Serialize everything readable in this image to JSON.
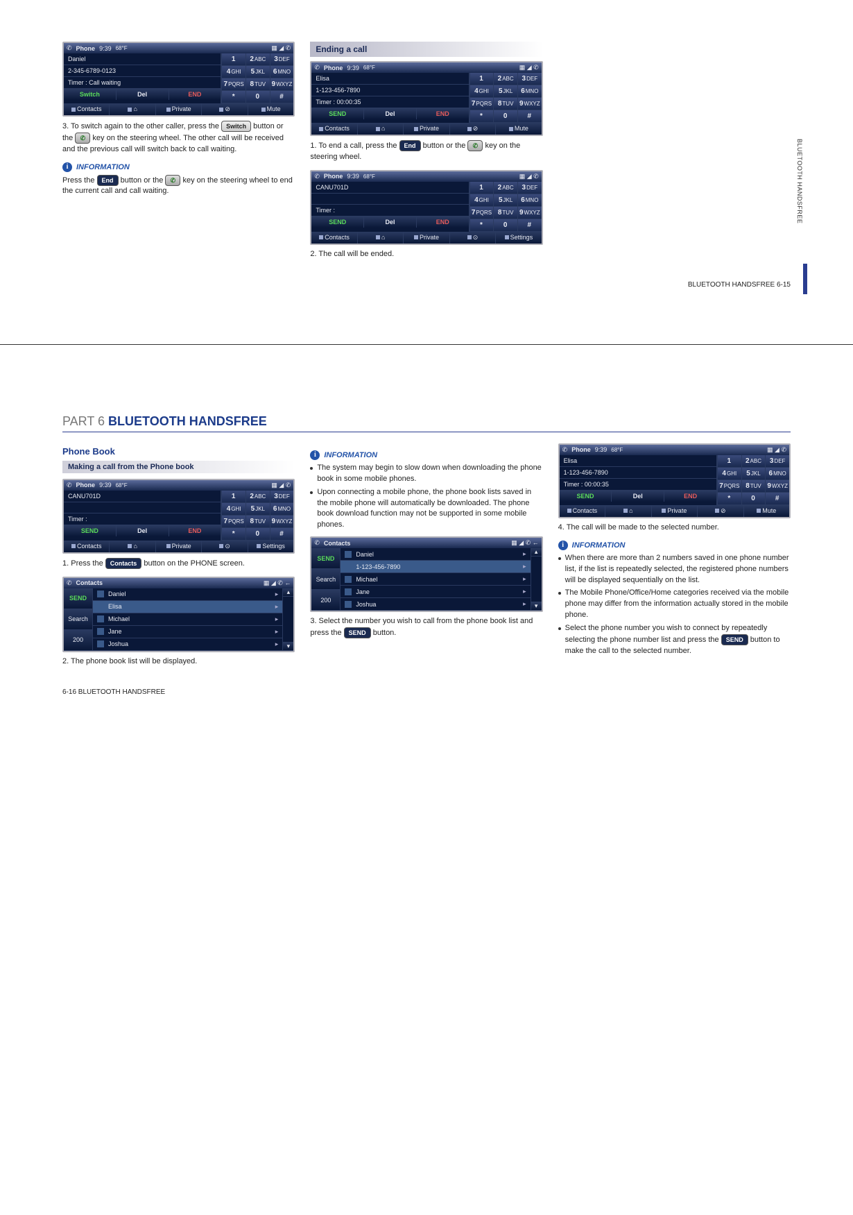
{
  "keypad": [
    {
      "n": "1",
      "t": ""
    },
    {
      "n": "2",
      "t": "ABC"
    },
    {
      "n": "3",
      "t": "DEF"
    },
    {
      "n": "4",
      "t": "GHI"
    },
    {
      "n": "5",
      "t": "JKL"
    },
    {
      "n": "6",
      "t": "MNO"
    },
    {
      "n": "7",
      "t": "PQRS"
    },
    {
      "n": "8",
      "t": "TUV"
    },
    {
      "n": "9",
      "t": "WXYZ"
    },
    {
      "n": "*",
      "t": ""
    },
    {
      "n": "0",
      "t": ""
    },
    {
      "n": "#",
      "t": ""
    }
  ],
  "header": {
    "title": "Phone",
    "time": "9:39",
    "temp": "68°F",
    "icons": "▦ ◢ ✆"
  },
  "page1": {
    "screen1": {
      "rows": [
        "Daniel",
        "2-345-6789-0123",
        "Timer : Call waiting"
      ],
      "btns": [
        {
          "t": "Switch",
          "c": "btn-green"
        },
        {
          "t": "Del",
          "c": ""
        },
        {
          "t": "END",
          "c": "btn-red"
        }
      ],
      "footer": [
        "Contacts",
        "⌂",
        "Private",
        "⊘",
        "Mute"
      ]
    },
    "step3": "3. To switch again to the other caller, press the ",
    "step3b": " button or the ",
    "step3c": " key on the steering wheel. The other call will be received and the previous call will switch back to call waiting.",
    "pill_switch": "Switch",
    "info_heading": "INFORMATION",
    "info1a": "Press the ",
    "info1b": " button or the ",
    "info1c": " key on the steering wheel to end the current call and call waiting.",
    "pill_end": "End",
    "ending_heading": "Ending a call",
    "screen2": {
      "rows": [
        "Elisa",
        "1-123-456-7890",
        "Timer : 00:00:35"
      ],
      "btns": [
        {
          "t": "SEND",
          "c": "btn-green"
        },
        {
          "t": "Del",
          "c": ""
        },
        {
          "t": "END",
          "c": "btn-red"
        }
      ],
      "footer": [
        "Contacts",
        "⌂",
        "Private",
        "⊘",
        "Mute"
      ]
    },
    "end_step1a": "1. To end a call, press the ",
    "end_step1b": " button or the ",
    "end_step1c": " key on the steering wheel.",
    "screen3": {
      "rows": [
        "CANU701D",
        "",
        "Timer :"
      ],
      "btns": [
        {
          "t": "SEND",
          "c": "btn-green"
        },
        {
          "t": "Del",
          "c": ""
        },
        {
          "t": "END",
          "c": "btn-red"
        }
      ],
      "footer": [
        "Contacts",
        "⌂",
        "Private",
        "⊙",
        "Settings"
      ]
    },
    "end_step2": "2. The call will be ended.",
    "side_label": "BLUETOOTH HANDSFREE",
    "page_num": "BLUETOOTH HANDSFREE   6-15"
  },
  "page2": {
    "chapter_part": "PART 6 ",
    "chapter_title": "BLUETOOTH HANDSFREE",
    "phonebook_heading": "Phone Book",
    "making_heading": "Making a call from the Phone book",
    "screen4": {
      "rows": [
        "CANU701D",
        "",
        "Timer :"
      ],
      "btns": [
        {
          "t": "SEND",
          "c": "btn-green"
        },
        {
          "t": "Del",
          "c": ""
        },
        {
          "t": "END",
          "c": "btn-red"
        }
      ],
      "footer": [
        "Contacts",
        "⌂",
        "Private",
        "⊙",
        "Settings"
      ]
    },
    "step1a": "1. Press the ",
    "step1b": " button on the PHONE screen.",
    "pill_contacts": "Contacts",
    "contacts1": {
      "title": "Contacts",
      "left": [
        {
          "t": "SEND",
          "c": "send"
        },
        {
          "t": "Search",
          "c": ""
        },
        {
          "t": "200",
          "c": ""
        }
      ],
      "items": [
        {
          "name": "Daniel",
          "sel": false
        },
        {
          "name": "Elisa",
          "sel": true
        },
        {
          "name": "Michael",
          "sel": false
        },
        {
          "name": "Jane",
          "sel": false
        },
        {
          "name": "Joshua",
          "sel": false
        }
      ]
    },
    "step2": "2. The phone book list will be displayed.",
    "info_heading": "INFORMATION",
    "info_bullets": [
      "The system may begin to slow down when downloading the phone book in some mobile phones.",
      "Upon connecting a mobile phone, the phone book lists saved in the mobile phone will automatically be downloaded. The phone book download function may not be supported in some mobile phones."
    ],
    "contacts2": {
      "title": "Contacts",
      "left": [
        {
          "t": "SEND",
          "c": "send"
        },
        {
          "t": "Search",
          "c": ""
        },
        {
          "t": "200",
          "c": ""
        }
      ],
      "items": [
        {
          "name": "Daniel",
          "sel": false
        },
        {
          "name": "1-123-456-7890",
          "sel": true
        },
        {
          "name": "Michael",
          "sel": false
        },
        {
          "name": "Jane",
          "sel": false
        },
        {
          "name": "Joshua",
          "sel": false
        }
      ]
    },
    "step3a": "3. Select the number you wish to call from the phone book list and press the ",
    "step3b": " button.",
    "pill_send": "SEND",
    "screen5": {
      "rows": [
        "Elisa",
        "1-123-456-7890",
        "Timer : 00:00:35"
      ],
      "btns": [
        {
          "t": "SEND",
          "c": "btn-green"
        },
        {
          "t": "Del",
          "c": ""
        },
        {
          "t": "END",
          "c": "btn-red"
        }
      ],
      "footer": [
        "Contacts",
        "⌂",
        "Private",
        "⊘",
        "Mute"
      ]
    },
    "step4": "4. The call will be made to the selected number.",
    "info2_bullets": [
      "When there are more than 2 numbers saved in one phone number list, if the list is repeatedly selected, the registered phone numbers will be displayed sequentially on the list.",
      "The Mobile Phone/Office/Home categories received via the mobile phone may differ from the information actually stored in the mobile phone."
    ],
    "info2_last_a": "Select the phone number you wish to connect by repeatedly selecting the phone number list and press the ",
    "info2_last_b": " button to make the call to the selected number.",
    "page_num": "6-16   BLUETOOTH HANDSFREE"
  }
}
